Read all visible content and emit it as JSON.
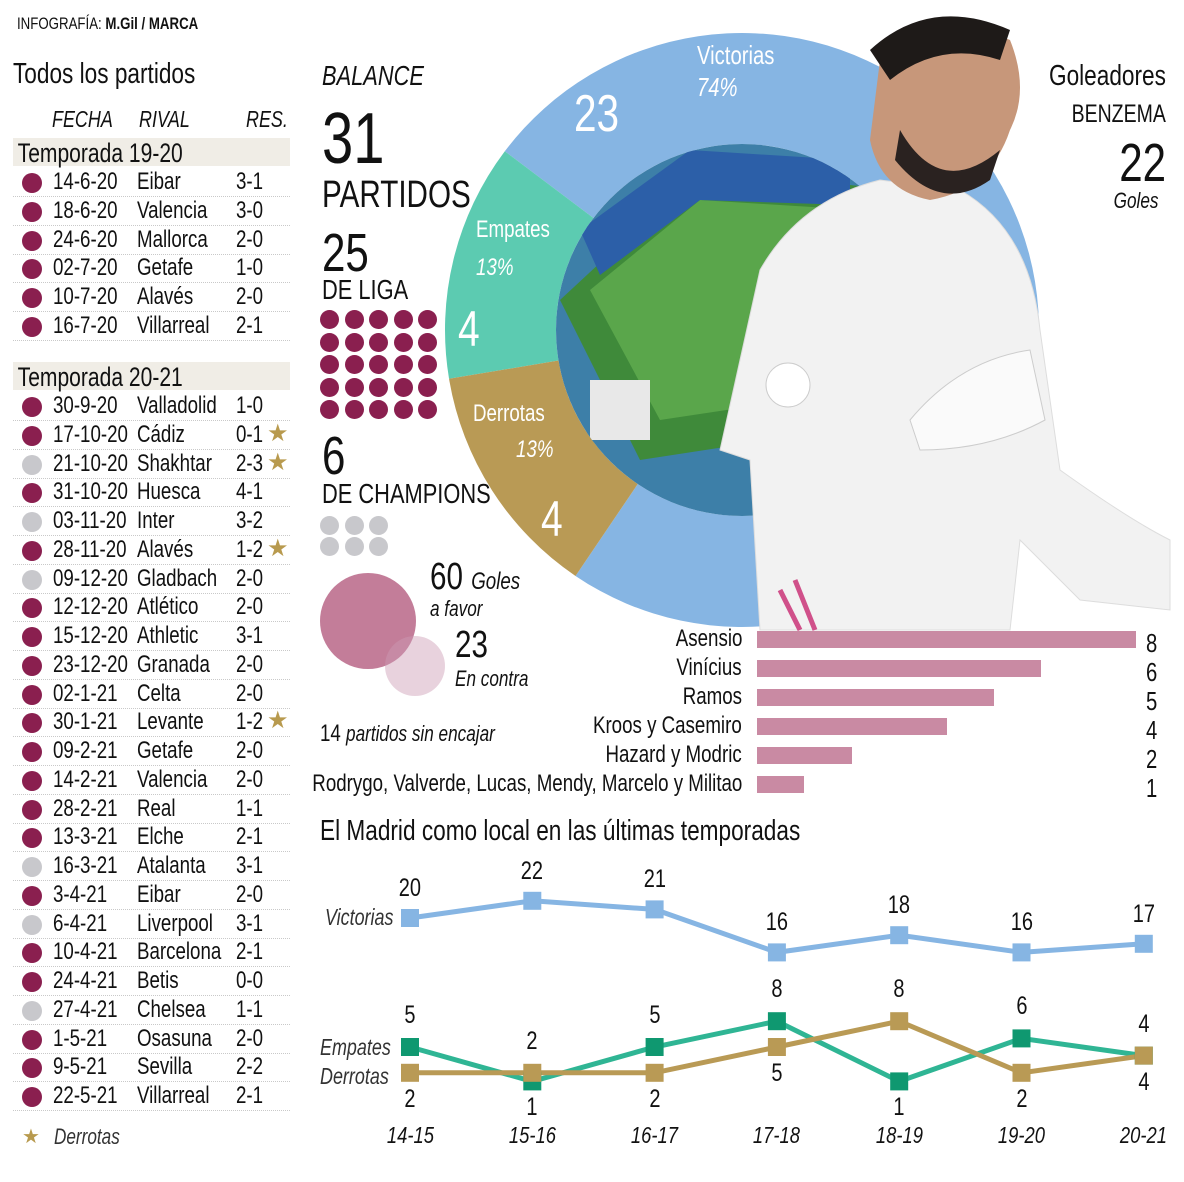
{
  "credit": {
    "prefix": "INFOGRAFÍA:",
    "author": "M.Gil / MARCA"
  },
  "matches": {
    "title": "Todos los partidos",
    "headers": {
      "date": "FECHA",
      "rival": "RIVAL",
      "result": "RES."
    },
    "legend": "Derrotas",
    "seasons": [
      {
        "name": "Temporada 19-20",
        "rows": [
          {
            "date": "14-6-20",
            "rival": "Eibar",
            "result": "3-1",
            "comp": "liga",
            "loss": false
          },
          {
            "date": "18-6-20",
            "rival": "Valencia",
            "result": "3-0",
            "comp": "liga",
            "loss": false
          },
          {
            "date": "24-6-20",
            "rival": "Mallorca",
            "result": "2-0",
            "comp": "liga",
            "loss": false
          },
          {
            "date": "02-7-20",
            "rival": "Getafe",
            "result": "1-0",
            "comp": "liga",
            "loss": false
          },
          {
            "date": "10-7-20",
            "rival": "Alavés",
            "result": "2-0",
            "comp": "liga",
            "loss": false
          },
          {
            "date": "16-7-20",
            "rival": "Villarreal",
            "result": "2-1",
            "comp": "liga",
            "loss": false
          }
        ]
      },
      {
        "name": "Temporada 20-21",
        "rows": [
          {
            "date": "30-9-20",
            "rival": "Valladolid",
            "result": "1-0",
            "comp": "liga",
            "loss": false
          },
          {
            "date": "17-10-20",
            "rival": "Cádiz",
            "result": "0-1",
            "comp": "liga",
            "loss": true
          },
          {
            "date": "21-10-20",
            "rival": "Shakhtar",
            "result": "2-3",
            "comp": "champions",
            "loss": true
          },
          {
            "date": "31-10-20",
            "rival": "Huesca",
            "result": "4-1",
            "comp": "liga",
            "loss": false
          },
          {
            "date": "03-11-20",
            "rival": "Inter",
            "result": "3-2",
            "comp": "champions",
            "loss": false
          },
          {
            "date": "28-11-20",
            "rival": "Alavés",
            "result": "1-2",
            "comp": "liga",
            "loss": true
          },
          {
            "date": "09-12-20",
            "rival": "Gladbach",
            "result": "2-0",
            "comp": "champions",
            "loss": false
          },
          {
            "date": "12-12-20",
            "rival": "Atlético",
            "result": "2-0",
            "comp": "liga",
            "loss": false
          },
          {
            "date": "15-12-20",
            "rival": "Athletic",
            "result": "3-1",
            "comp": "liga",
            "loss": false
          },
          {
            "date": "23-12-20",
            "rival": "Granada",
            "result": "2-0",
            "comp": "liga",
            "loss": false
          },
          {
            "date": "02-1-21",
            "rival": "Celta",
            "result": "2-0",
            "comp": "liga",
            "loss": false
          },
          {
            "date": "30-1-21",
            "rival": "Levante",
            "result": "1-2",
            "comp": "liga",
            "loss": true
          },
          {
            "date": "09-2-21",
            "rival": "Getafe",
            "result": "2-0",
            "comp": "liga",
            "loss": false
          },
          {
            "date": "14-2-21",
            "rival": "Valencia",
            "result": "2-0",
            "comp": "liga",
            "loss": false
          },
          {
            "date": "28-2-21",
            "rival": "Real",
            "result": "1-1",
            "comp": "liga",
            "loss": false
          },
          {
            "date": "13-3-21",
            "rival": "Elche",
            "result": "2-1",
            "comp": "liga",
            "loss": false
          },
          {
            "date": "16-3-21",
            "rival": "Atalanta",
            "result": "3-1",
            "comp": "champions",
            "loss": false
          },
          {
            "date": "3-4-21",
            "rival": "Eibar",
            "result": "2-0",
            "comp": "liga",
            "loss": false
          },
          {
            "date": "6-4-21",
            "rival": "Liverpool",
            "result": "3-1",
            "comp": "champions",
            "loss": false
          },
          {
            "date": "10-4-21",
            "rival": "Barcelona",
            "result": "2-1",
            "comp": "liga",
            "loss": false
          },
          {
            "date": "24-4-21",
            "rival": "Betis",
            "result": "0-0",
            "comp": "liga",
            "loss": false
          },
          {
            "date": "27-4-21",
            "rival": "Chelsea",
            "result": "1-1",
            "comp": "champions",
            "loss": false
          },
          {
            "date": "1-5-21",
            "rival": "Osasuna",
            "result": "2-0",
            "comp": "liga",
            "loss": false
          },
          {
            "date": "9-5-21",
            "rival": "Sevilla",
            "result": "2-2",
            "comp": "liga",
            "loss": false
          },
          {
            "date": "22-5-21",
            "rival": "Villarreal",
            "result": "2-1",
            "comp": "liga",
            "loss": false
          }
        ]
      }
    ]
  },
  "balance": {
    "title": "BALANCE",
    "total": "31",
    "total_label": "PARTIDOS",
    "liga": 25,
    "liga_label": "DE LIGA",
    "champions": 6,
    "champions_label": "DE CHAMPIONS",
    "goals_for": "60",
    "goals_for_label1": "Goles",
    "goals_for_label2": "a favor",
    "goals_against": "23",
    "goals_against_label": "En contra",
    "clean_sheets": "14",
    "clean_sheets_label": "partidos sin encajar"
  },
  "colors": {
    "liga": "#8a1f4f",
    "champions": "#c8c8cc",
    "star": "#b89a4e",
    "victorias": "#86b5e3",
    "empates": "#5ccbb1",
    "derrotas": "#b99a55",
    "bars": "#c98aa3",
    "empates_line": "#2fb594",
    "empates_marker": "#0f9870"
  },
  "chart_data": [
    {
      "type": "pie",
      "title": "BALANCE",
      "slices": [
        {
          "label": "Victorias",
          "value": 23,
          "percent": "74%"
        },
        {
          "label": "Empates",
          "value": 4,
          "percent": "13%"
        },
        {
          "label": "Derrotas",
          "value": 4,
          "percent": "13%"
        }
      ]
    },
    {
      "type": "bar",
      "title": "Goleadores",
      "subtitle": "BENZEMA",
      "highlight_value": "22",
      "highlight_label": "Goles",
      "categories": [
        "Asensio",
        "Vinícius",
        "Ramos",
        "Kroos y Casemiro",
        "Hazard y Modric",
        "Rodrygo, Valverde, Lucas, Mendy, Marcelo y Militao"
      ],
      "values": [
        8,
        6,
        5,
        4,
        2,
        1
      ]
    },
    {
      "type": "line",
      "title": "El Madrid como local en las últimas temporadas",
      "x": [
        "14-15",
        "15-16",
        "16-17",
        "17-18",
        "18-19",
        "19-20",
        "20-21"
      ],
      "series": [
        {
          "name": "Victorias",
          "values": [
            20,
            22,
            21,
            16,
            18,
            16,
            17
          ]
        },
        {
          "name": "Empates",
          "values": [
            5,
            1,
            5,
            8,
            1,
            6,
            4
          ]
        },
        {
          "name": "Derrotas",
          "values": [
            2,
            2,
            2,
            5,
            8,
            2,
            4
          ]
        }
      ],
      "grid": false
    }
  ]
}
